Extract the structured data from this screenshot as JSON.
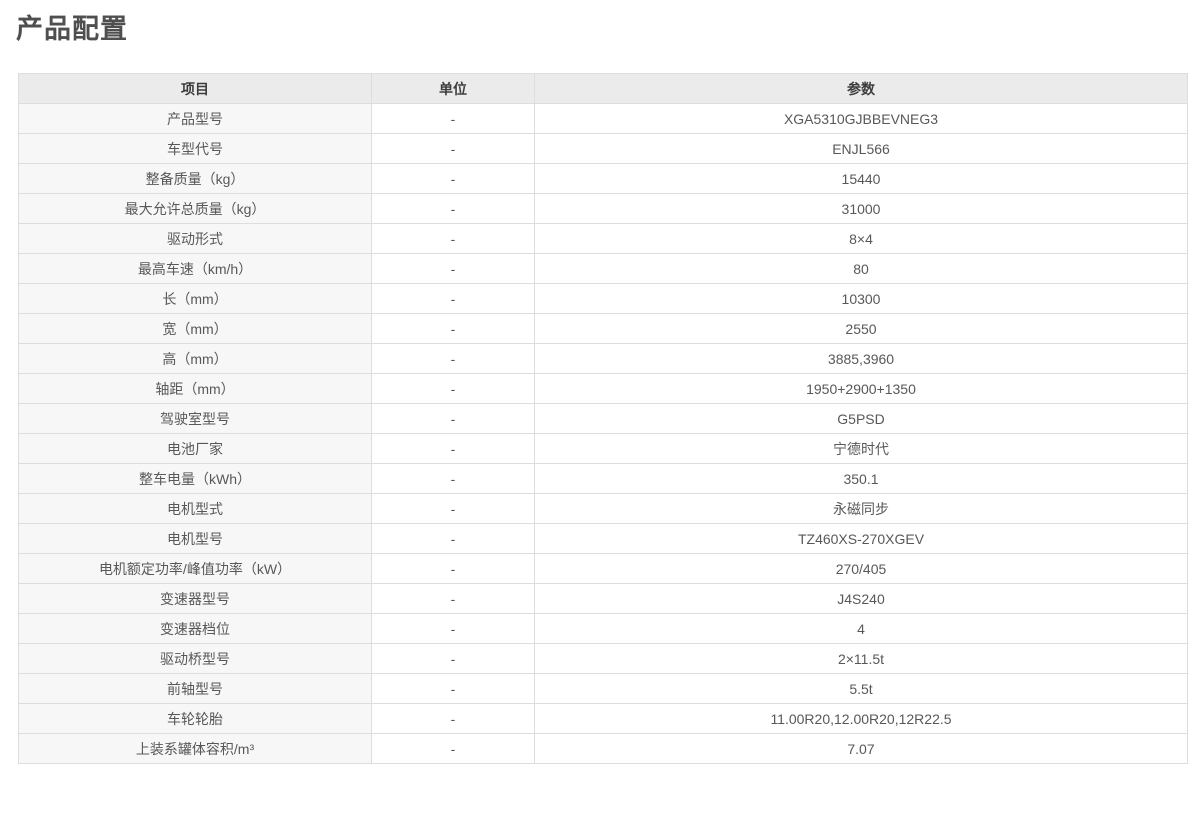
{
  "page": {
    "title": "产品配置"
  },
  "colors": {
    "header_bg": "#ebebeb",
    "item_column_bg": "#f7f7f7",
    "border": "#dddddd",
    "title_text": "#4f4f4f",
    "cell_text": "#585858"
  },
  "table": {
    "columns": [
      {
        "key": "item",
        "label": "项目"
      },
      {
        "key": "unit",
        "label": "单位"
      },
      {
        "key": "param",
        "label": "参数"
      }
    ],
    "rows": [
      {
        "item": "产品型号",
        "unit": "-",
        "param": "XGA5310GJBBEVNEG3"
      },
      {
        "item": "车型代号",
        "unit": "-",
        "param": "ENJL566"
      },
      {
        "item": "整备质量（kg）",
        "unit": "-",
        "param": "15440"
      },
      {
        "item": "最大允许总质量（kg）",
        "unit": "-",
        "param": "31000"
      },
      {
        "item": "驱动形式",
        "unit": "-",
        "param": "8×4"
      },
      {
        "item": "最高车速（km/h）",
        "unit": "-",
        "param": "80"
      },
      {
        "item": "长（mm）",
        "unit": "-",
        "param": "10300"
      },
      {
        "item": "宽（mm）",
        "unit": "-",
        "param": "2550"
      },
      {
        "item": "高（mm）",
        "unit": "-",
        "param": "3885,3960"
      },
      {
        "item": "轴距（mm）",
        "unit": "-",
        "param": "1950+2900+1350"
      },
      {
        "item": "驾驶室型号",
        "unit": "-",
        "param": "G5PSD"
      },
      {
        "item": "电池厂家",
        "unit": "-",
        "param": "宁德时代"
      },
      {
        "item": "整车电量（kWh）",
        "unit": "-",
        "param": "350.1"
      },
      {
        "item": "电机型式",
        "unit": "-",
        "param": "永磁同步"
      },
      {
        "item": "电机型号",
        "unit": "-",
        "param": "TZ460XS-270XGEV"
      },
      {
        "item": "电机额定功率/峰值功率（kW）",
        "unit": "-",
        "param": "270/405"
      },
      {
        "item": "变速器型号",
        "unit": "-",
        "param": "J4S240"
      },
      {
        "item": "变速器档位",
        "unit": "-",
        "param": "4"
      },
      {
        "item": "驱动桥型号",
        "unit": "-",
        "param": "2×11.5t"
      },
      {
        "item": "前轴型号",
        "unit": "-",
        "param": "5.5t"
      },
      {
        "item": "车轮轮胎",
        "unit": "-",
        "param": "11.00R20,12.00R20,12R22.5"
      },
      {
        "item": "上装系罐体容积/m³",
        "unit": "-",
        "param": "7.07"
      }
    ]
  }
}
